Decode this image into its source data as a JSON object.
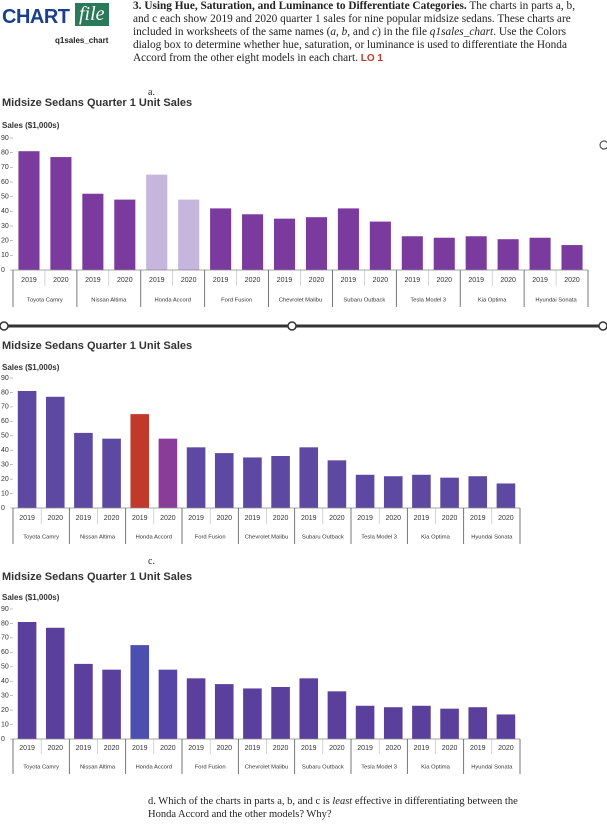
{
  "header": {
    "chart_word": "CHART",
    "file_word": "file",
    "file_name": "q1sales_chart"
  },
  "problem": {
    "number": "3.",
    "heading": "Using Hue, Saturation, and Luminance to Differentiate Categories.",
    "text_1": "The charts in parts a, b, and c each show 2019 and 2020 quarter 1 sales for nine popular midsize sedans. These charts are included in worksheets of the same names (",
    "names": "a, b,",
    "text_2": " and ",
    "name_c": "c",
    "text_3": ") in the file ",
    "file_ref": "q1sales_chart",
    "text_4": ". Use the Colors dialog box to determine whether hue, saturation, or luminance is used to differentiate the Honda Accord from the other eight models in each chart.",
    "lo": "LO 1"
  },
  "part_labels": {
    "a": "a.",
    "c": "c."
  },
  "question_d": {
    "prefix": "d. Which of the charts in parts a, b, and c is ",
    "emphasis": "least",
    "suffix": " effective in differentiating between the Honda Accord and the other models? Why?"
  },
  "chart_data": [
    {
      "type": "bar",
      "title": "Midsize Sedans Quarter 1 Unit Sales",
      "y_label": "Sales ($1,000s)",
      "categories": [
        "2019",
        "2020",
        "2019",
        "2020",
        "2019",
        "2020",
        "2019",
        "2020",
        "2019",
        "2020",
        "2019",
        "2020",
        "2019",
        "2020",
        "2019",
        "2020",
        "2019",
        "2020"
      ],
      "groups": [
        "Toyota Camry",
        "Nissan Altima",
        "Honda Accord",
        "Ford Fusion",
        "Chevrolet Malibu",
        "Subaru Outback",
        "Tesla Model 3",
        "Kia Optima",
        "Hyundai Sonata"
      ],
      "values": [
        81,
        77,
        52,
        48,
        65,
        48,
        42,
        38,
        35,
        36,
        42,
        33,
        23,
        22,
        23,
        21,
        22,
        17
      ],
      "colors": [
        "#7b3a9e",
        "#7b3a9e",
        "#7b3a9e",
        "#7b3a9e",
        "#c6b5dd",
        "#c6b5dd",
        "#7b3a9e",
        "#7b3a9e",
        "#7b3a9e",
        "#7b3a9e",
        "#7b3a9e",
        "#7b3a9e",
        "#7b3a9e",
        "#7b3a9e",
        "#7b3a9e",
        "#7b3a9e",
        "#7b3a9e",
        "#7b3a9e"
      ],
      "ylim": [
        0,
        90
      ],
      "yticks": [
        0,
        10,
        20,
        30,
        40,
        50,
        60,
        70,
        80,
        90
      ]
    },
    {
      "type": "bar",
      "title": "Midsize Sedans Quarter 1 Unit Sales",
      "y_label": "Sales ($1,000s)",
      "categories": [
        "2019",
        "2020",
        "2019",
        "2020",
        "2019",
        "2020",
        "2019",
        "2020",
        "2019",
        "2020",
        "2019",
        "2020",
        "2019",
        "2020",
        "2019",
        "2020",
        "2019",
        "2020"
      ],
      "groups": [
        "Toyota Camry",
        "Nissan Altima",
        "Honda Accord",
        "Ford Fusion",
        "Chevrolet Malibu",
        "Subaru Outback",
        "Tesla Model 3",
        "Kia Optima",
        "Hyundai Sonata"
      ],
      "values": [
        81,
        77,
        52,
        48,
        65,
        48,
        42,
        38,
        35,
        36,
        42,
        33,
        23,
        22,
        23,
        21,
        22,
        17
      ],
      "colors": [
        "#5d48a2",
        "#5d48a2",
        "#5d48a2",
        "#5d48a2",
        "#c0392b",
        "#8a3c9b",
        "#5d48a2",
        "#5d48a2",
        "#5d48a2",
        "#5d48a2",
        "#5d48a2",
        "#5d48a2",
        "#5d48a2",
        "#5d48a2",
        "#5d48a2",
        "#5d48a2",
        "#5d48a2",
        "#5d48a2"
      ],
      "ylim": [
        0,
        90
      ],
      "yticks": [
        0,
        10,
        20,
        30,
        40,
        50,
        60,
        70,
        80,
        90
      ]
    },
    {
      "type": "bar",
      "title": "Midsize Sedans Quarter 1 Unit Sales",
      "y_label": "Sales ($1,000s)",
      "categories": [
        "2019",
        "2020",
        "2019",
        "2020",
        "2019",
        "2020",
        "2019",
        "2020",
        "2019",
        "2020",
        "2019",
        "2020",
        "2019",
        "2020",
        "2019",
        "2020",
        "2019",
        "2020"
      ],
      "groups": [
        "Toyota Camry",
        "Nissan Altima",
        "Honda Accord",
        "Ford Fusion",
        "Chevrolet Malibu",
        "Subaru Outback",
        "Tesla Model 3",
        "Kia Optima",
        "Hyundai Sonata"
      ],
      "values": [
        81,
        77,
        52,
        48,
        65,
        48,
        42,
        38,
        35,
        36,
        42,
        33,
        23,
        22,
        23,
        21,
        22,
        17
      ],
      "colors": [
        "#5a3f9c",
        "#5a3f9c",
        "#5a3f9c",
        "#5a3f9c",
        "#4b4fb0",
        "#5645a6",
        "#5a3f9c",
        "#5a3f9c",
        "#5a3f9c",
        "#5a3f9c",
        "#5a3f9c",
        "#5a3f9c",
        "#5a3f9c",
        "#5a3f9c",
        "#5a3f9c",
        "#5a3f9c",
        "#5a3f9c",
        "#5a3f9c"
      ],
      "ylim": [
        0,
        90
      ],
      "yticks": [
        0,
        10,
        20,
        30,
        40,
        50,
        60,
        70,
        80,
        90
      ]
    }
  ]
}
